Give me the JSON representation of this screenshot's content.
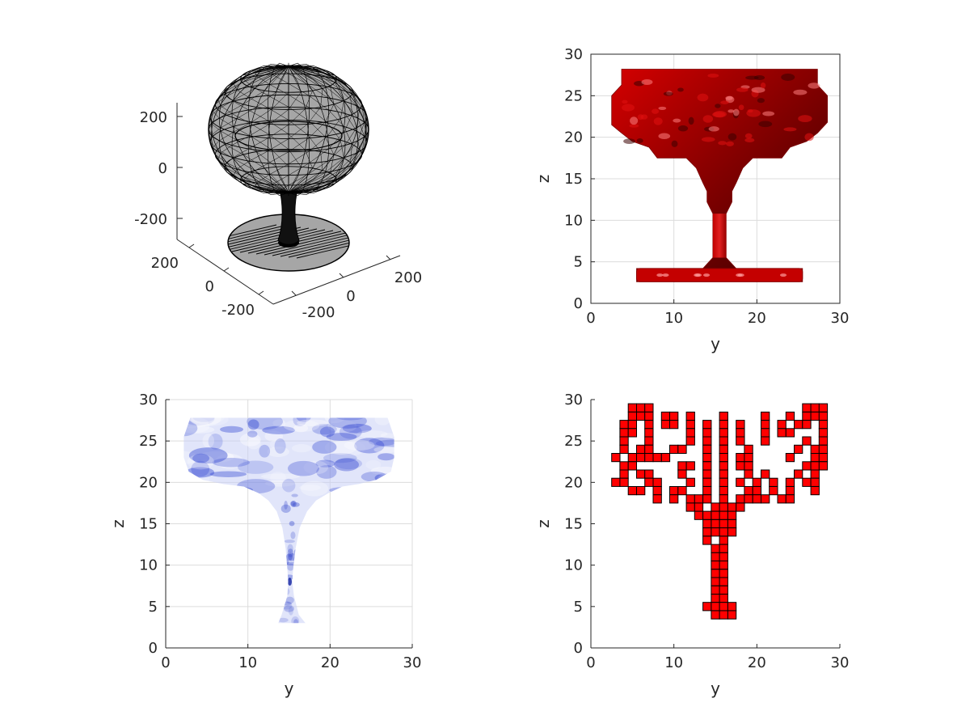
{
  "figure": {
    "background": "#ffffff",
    "axis_color": "#262626",
    "grid_color": "#dcdcdc"
  },
  "chart_data": [
    {
      "type": "other",
      "panel": "3d-wireframe-mesh",
      "view": "3d",
      "render": "wireframe surface, black edges, gray fill",
      "colors": {
        "edge": "#000000",
        "face": "#a6a6a6"
      },
      "axes": {
        "x": {
          "ticks": [
            -200,
            0,
            200
          ],
          "tick_labels": [
            "-200",
            "0",
            "200"
          ]
        },
        "y": {
          "ticks": [
            -200,
            0,
            200
          ],
          "tick_labels": [
            "-200",
            "0",
            "200"
          ]
        },
        "z": {
          "ticks": [
            -200,
            0,
            200
          ],
          "tick_labels": [
            "-200",
            "0",
            "200"
          ]
        }
      },
      "grid": false
    },
    {
      "type": "other",
      "panel": "shaded-isosurface",
      "view": "2d side (y-z)",
      "render": "lit red isosurface",
      "colors": {
        "face": "#cc0000",
        "shadow": "#5a0000",
        "highlight": "#ff6060"
      },
      "xlabel": "y",
      "ylabel": "z",
      "xlim": [
        0,
        30
      ],
      "ylim": [
        0,
        30
      ],
      "xticks": [
        0,
        10,
        20,
        30
      ],
      "yticks": [
        0,
        5,
        10,
        15,
        20,
        25,
        30
      ],
      "grid": true,
      "outline": {
        "bowl": [
          [
            2.5,
            21.5
          ],
          [
            2.5,
            25
          ],
          [
            3.7,
            26.3
          ],
          [
            3.7,
            28.2
          ],
          [
            27.3,
            28.2
          ],
          [
            27.3,
            26.3
          ],
          [
            28.5,
            25
          ],
          [
            28.5,
            21.8
          ],
          [
            27.3,
            20.5
          ],
          [
            26,
            19.5
          ],
          [
            24,
            18.8
          ],
          [
            23,
            17.5
          ],
          [
            19.5,
            17.5
          ],
          [
            18.3,
            16.3
          ],
          [
            17.5,
            14.5
          ],
          [
            17,
            13.5
          ],
          [
            17,
            12.2
          ],
          [
            16.3,
            10.8
          ],
          [
            16.3,
            5.5
          ],
          [
            17.5,
            4.2
          ],
          [
            25.5,
            4.2
          ],
          [
            25.5,
            2.6
          ],
          [
            5.5,
            2.6
          ],
          [
            5.5,
            4.2
          ],
          [
            13.5,
            4.2
          ],
          [
            14.7,
            5.5
          ],
          [
            14.7,
            10.8
          ],
          [
            14,
            12.2
          ],
          [
            14,
            13.5
          ],
          [
            13.5,
            14.5
          ],
          [
            12.7,
            16.3
          ],
          [
            11.5,
            17.5
          ],
          [
            8,
            17.5
          ],
          [
            7,
            18.8
          ],
          [
            5,
            19.5
          ],
          [
            3.7,
            20.5
          ]
        ]
      }
    },
    {
      "type": "other",
      "panel": "translucent-volume",
      "view": "2d side (y-z)",
      "render": "semi-transparent blue volume",
      "colors": {
        "face": "#2a3fd0",
        "light": "#dfe3ff"
      },
      "xlabel": "y",
      "ylabel": "z",
      "xlim": [
        0,
        30
      ],
      "ylim": [
        0,
        30
      ],
      "xticks": [
        0,
        10,
        20,
        30
      ],
      "yticks": [
        0,
        5,
        10,
        15,
        20,
        25,
        30
      ],
      "grid": true,
      "outline": [
        [
          3,
          27.8
        ],
        [
          2.2,
          25.5
        ],
        [
          2.2,
          23
        ],
        [
          2.8,
          21.3
        ],
        [
          4.5,
          20.3
        ],
        [
          7,
          19.8
        ],
        [
          9.5,
          19.5
        ],
        [
          11.3,
          18.7
        ],
        [
          12.5,
          17.8
        ],
        [
          13.5,
          16.5
        ],
        [
          14.2,
          14.5
        ],
        [
          14.6,
          12
        ],
        [
          14.8,
          9.5
        ],
        [
          14.9,
          8
        ],
        [
          14.8,
          6.3
        ],
        [
          14.1,
          4
        ],
        [
          13.7,
          3
        ],
        [
          17,
          3
        ],
        [
          16.2,
          4
        ],
        [
          15.6,
          6.3
        ],
        [
          15.4,
          8
        ],
        [
          15.5,
          9.5
        ],
        [
          15.8,
          12
        ],
        [
          16.3,
          14.5
        ],
        [
          17.2,
          16.5
        ],
        [
          18.3,
          17.8
        ],
        [
          19.8,
          18.7
        ],
        [
          21.5,
          19.5
        ],
        [
          23.5,
          19.8
        ],
        [
          25.6,
          20.3
        ],
        [
          27.4,
          21.3
        ],
        [
          27.8,
          23
        ],
        [
          27.8,
          25.5
        ],
        [
          27,
          27.8
        ]
      ]
    },
    {
      "type": "other",
      "panel": "voxel-slice",
      "view": "2d side (y-z)",
      "render": "red voxels with black edges",
      "colors": {
        "face": "#ff0000",
        "edge": "#000000"
      },
      "xlabel": "y",
      "ylabel": "z",
      "xlim": [
        0,
        30
      ],
      "ylim": [
        0,
        30
      ],
      "xticks": [
        0,
        10,
        20,
        30
      ],
      "yticks": [
        0,
        5,
        10,
        15,
        20,
        25,
        30
      ],
      "grid": false,
      "voxel_rows": [
        {
          "z": 29,
          "y": [
            5,
            6,
            7,
            26,
            27,
            28
          ]
        },
        {
          "z": 28,
          "y": [
            5,
            6,
            7,
            9,
            10,
            12,
            16,
            21,
            24,
            26,
            27,
            28
          ]
        },
        {
          "z": 27,
          "y": [
            4,
            5,
            7,
            9,
            10,
            12,
            14,
            16,
            18,
            21,
            23,
            25,
            26,
            28
          ]
        },
        {
          "z": 26,
          "y": [
            4,
            5,
            7,
            12,
            14,
            16,
            18,
            21,
            23,
            24,
            28
          ]
        },
        {
          "z": 25,
          "y": [
            4,
            7,
            12,
            14,
            16,
            18,
            21,
            26,
            28
          ]
        },
        {
          "z": 24,
          "y": [
            4,
            6,
            7,
            10,
            11,
            14,
            16,
            19,
            25,
            27,
            28
          ]
        },
        {
          "z": 23,
          "y": [
            3,
            5,
            6,
            7,
            8,
            9,
            14,
            16,
            18,
            19,
            24,
            27,
            28
          ]
        },
        {
          "z": 22,
          "y": [
            4,
            5,
            11,
            12,
            14,
            16,
            18,
            19,
            26,
            27,
            28
          ]
        },
        {
          "z": 21,
          "y": [
            4,
            6,
            7,
            11,
            14,
            16,
            19,
            21,
            25,
            27
          ]
        },
        {
          "z": 20,
          "y": [
            3,
            4,
            7,
            8,
            12,
            14,
            16,
            18,
            20,
            22,
            24,
            26,
            27
          ]
        },
        {
          "z": 19,
          "y": [
            5,
            6,
            8,
            10,
            11,
            14,
            16,
            19,
            20,
            22,
            24,
            27
          ]
        },
        {
          "z": 18,
          "y": [
            8,
            10,
            12,
            13,
            14,
            16,
            18,
            19,
            20,
            21,
            23,
            24
          ]
        },
        {
          "z": 17,
          "y": [
            12,
            13,
            15,
            16,
            17,
            18
          ]
        },
        {
          "z": 16,
          "y": [
            13,
            14,
            15,
            16,
            17
          ]
        },
        {
          "z": 15,
          "y": [
            14,
            15,
            16,
            17
          ]
        },
        {
          "z": 14,
          "y": [
            14,
            15,
            16,
            17
          ]
        },
        {
          "z": 13,
          "y": [
            14,
            16
          ]
        },
        {
          "z": 12,
          "y": [
            15,
            16
          ]
        },
        {
          "z": 11,
          "y": [
            15,
            16
          ]
        },
        {
          "z": 10,
          "y": [
            15,
            16
          ]
        },
        {
          "z": 9,
          "y": [
            15,
            16
          ]
        },
        {
          "z": 8,
          "y": [
            15,
            16
          ]
        },
        {
          "z": 7,
          "y": [
            15,
            16
          ]
        },
        {
          "z": 6,
          "y": [
            15,
            16
          ]
        },
        {
          "z": 5,
          "y": [
            14,
            15,
            16,
            17
          ]
        },
        {
          "z": 4,
          "y": [
            15,
            16,
            17
          ]
        }
      ]
    }
  ]
}
